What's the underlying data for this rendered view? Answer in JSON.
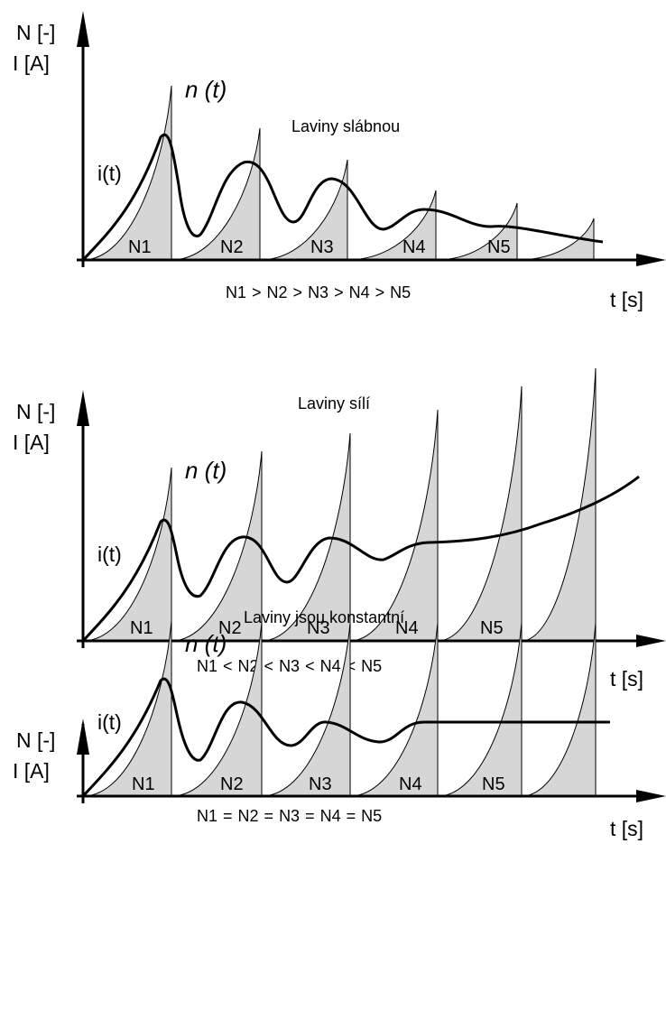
{
  "colors": {
    "fill": "#d6d6d6",
    "stroke": "#000000",
    "background": "#ffffff"
  },
  "axis_labels": {
    "y_line1": "N [-]",
    "y_line2": "I [A]",
    "x": "t [s]"
  },
  "curve_labels": {
    "n": "n (t)",
    "i": "i(t)"
  },
  "avalanche_labels": [
    "N1",
    "N2",
    "N3",
    "N4",
    "N5"
  ],
  "panels": [
    {
      "id": "weakening",
      "title": "Laviny slábnou",
      "avalanche_trend": "decreasing",
      "comparison": [
        "N1",
        ">",
        "N2",
        ">",
        "N3",
        ">",
        "N4",
        ">",
        "N5"
      ]
    },
    {
      "id": "strengthening",
      "title": "Laviny sílí",
      "avalanche_trend": "increasing",
      "comparison": [
        "N1",
        "<",
        "N2",
        "<",
        "N3",
        "<",
        "N4",
        "<",
        "N5"
      ]
    },
    {
      "id": "constant",
      "title": "Laviny jsou konstantní",
      "avalanche_trend": "constant",
      "comparison": [
        "N1",
        "=",
        "N2",
        "=",
        "N3",
        "=",
        "N4",
        "=",
        "N5"
      ]
    }
  ]
}
